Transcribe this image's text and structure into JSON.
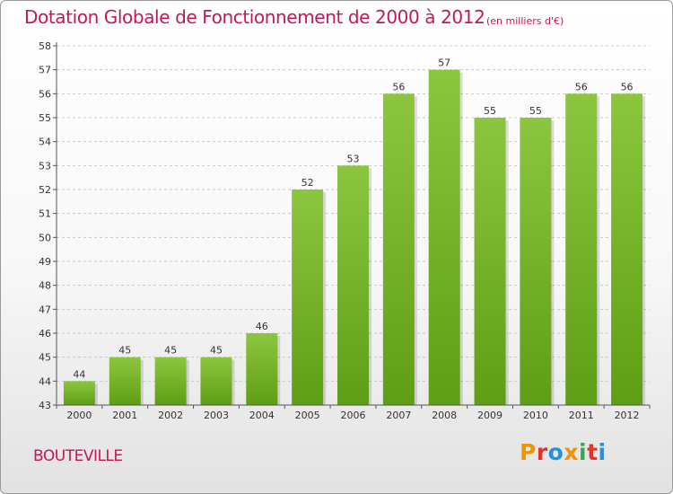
{
  "chart_data": {
    "type": "bar",
    "title": "Dotation Globale de Fonctionnement de 2000 à 2012",
    "unit": "(en milliers d'€)",
    "categories": [
      "2000",
      "2001",
      "2002",
      "2003",
      "2004",
      "2005",
      "2006",
      "2007",
      "2008",
      "2009",
      "2010",
      "2011",
      "2012"
    ],
    "values": [
      44,
      45,
      45,
      45,
      46,
      52,
      53,
      56,
      57,
      55,
      55,
      56,
      56
    ],
    "ylim": [
      43,
      58
    ],
    "yticks": [
      "43",
      "44",
      "45",
      "46",
      "47",
      "48",
      "49",
      "50",
      "51",
      "52",
      "53",
      "54",
      "55",
      "56",
      "57",
      "58"
    ],
    "grid": true,
    "bar_color": "#8cc63f",
    "bar_color_dark": "#5e9e14"
  },
  "footer": {
    "commune": "BOUTEVILLE",
    "brand": "Proxiti",
    "brand_colors": [
      "#f29400",
      "#e5332a",
      "#2b8fd6",
      "#f29400",
      "#36a852",
      "#e5332a",
      "#2b8fd6"
    ]
  }
}
